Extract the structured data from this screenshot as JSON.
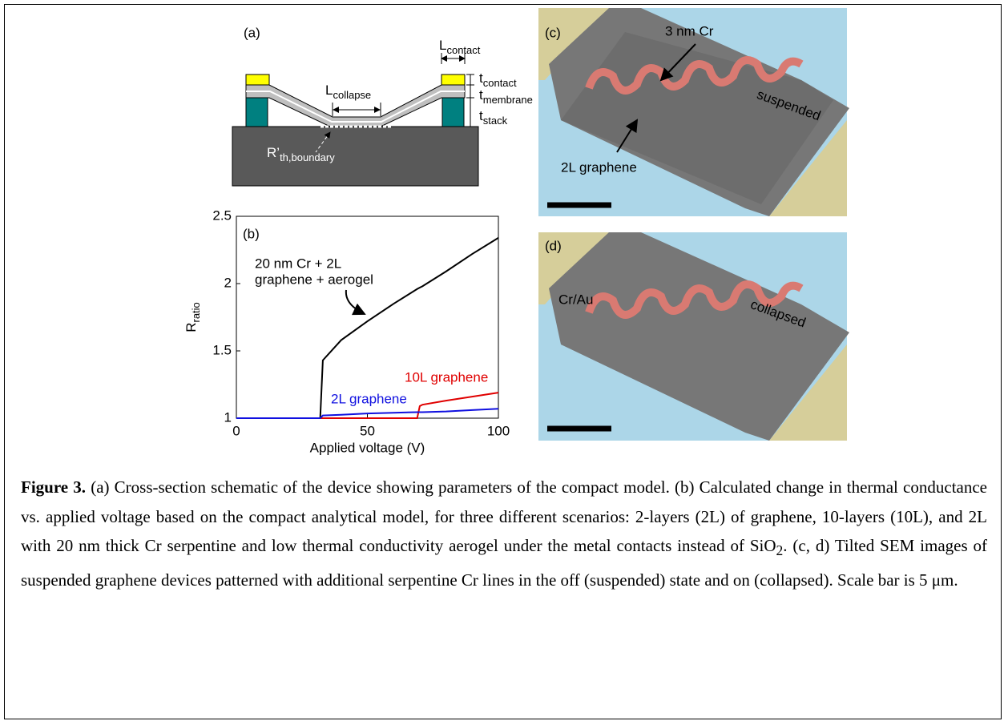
{
  "panel_a": {
    "label": "(a)",
    "l_contact": {
      "main": "L",
      "sub": "contact"
    },
    "t_contact": {
      "main": "t",
      "sub": "contact"
    },
    "t_membrane": {
      "main": "t",
      "sub": "membrane"
    },
    "t_stack": {
      "main": "t",
      "sub": "stack"
    },
    "l_collapse": {
      "main": "L",
      "sub": "collapse"
    },
    "r_boundary": {
      "main": "R’",
      "sub": "th,boundary"
    }
  },
  "chart_data": {
    "type": "line",
    "panel_label": "(b)",
    "xlabel": "Applied voltage (V)",
    "ylabel": {
      "main": "R",
      "sub": "ratio"
    },
    "xlim": [
      0,
      100
    ],
    "xticks": [
      0,
      50,
      100
    ],
    "ylim": [
      1,
      2.5
    ],
    "yticks": [
      1,
      1.5,
      2,
      2.5
    ],
    "x": [
      0,
      10,
      20,
      30,
      32,
      33,
      40,
      50,
      60,
      69,
      70,
      71,
      80,
      90,
      100
    ],
    "series": [
      {
        "name": "20 nm Cr + 2L graphene + aerogel",
        "color": "#000000",
        "values": [
          1,
          1,
          1,
          1,
          1,
          1.43,
          1.58,
          1.72,
          1.85,
          1.96,
          1.97,
          1.98,
          2.09,
          2.22,
          2.34
        ]
      },
      {
        "name": "10L graphene",
        "color": "#e00000",
        "values": [
          1,
          1,
          1,
          1,
          1,
          1,
          1,
          1,
          1,
          1,
          1.09,
          1.1,
          1.13,
          1.16,
          1.19
        ]
      },
      {
        "name": "2L graphene",
        "color": "#1010e0",
        "values": [
          1,
          1,
          1,
          1,
          1,
          1.02,
          1.025,
          1.035,
          1.04,
          1.045,
          1.045,
          1.045,
          1.05,
          1.06,
          1.07
        ]
      }
    ],
    "annotations": [
      "20 nm Cr +  2L",
      "graphene + aerogel"
    ]
  },
  "panel_c": {
    "label": "(c)",
    "cr": "3 nm Cr",
    "state": "suspended",
    "graphene": "2L graphene"
  },
  "panel_d": {
    "label": "(d)",
    "contact": "Cr/Au",
    "state": "collapsed"
  },
  "caption": {
    "label": "Figure 3.",
    "text1": " (a) Cross-section schematic of the device showing parameters of the compact model. (b) Calculated change in thermal conductance vs. applied voltage based on the compact analytical model, for three different scenarios: 2-layers (2L) of graphene, 10-layers (10L), and 2L with 20 nm thick Cr serpentine and low thermal conductivity aerogel under the metal contacts instead of SiO",
    "sub": "2",
    "text2": ". (c, d) Tilted SEM images of suspended graphene devices patterned with additional serpentine Cr lines in the off (suspended) state and on (collapsed). Scale bar is 5 μm."
  }
}
